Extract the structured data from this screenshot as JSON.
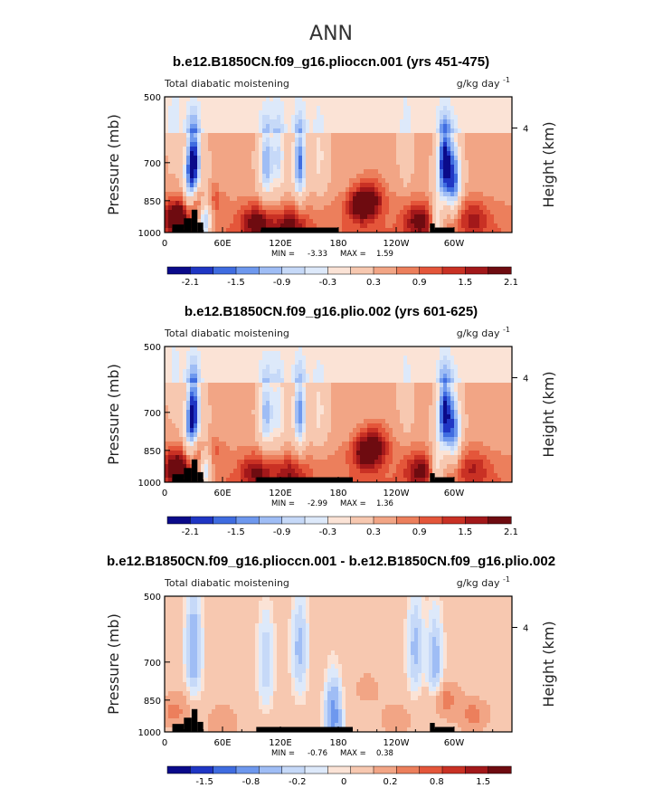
{
  "main_title": "ANN",
  "chart_data": [
    {
      "type": "heatmap",
      "title": "b.e12.B1850CN.f09_g16.plioccn.001 (yrs 451-475)",
      "left_label": "Total diabatic moistening",
      "units": "g/kg day",
      "units_exp": "-1",
      "ylabel": "Pressure (mb)",
      "y2label": "Height (km)",
      "yticks": [
        "500",
        "700",
        "850",
        "1000"
      ],
      "y2ticks": [
        "4"
      ],
      "xticks": [
        "0",
        "60E",
        "120E",
        "180",
        "120W",
        "60W"
      ],
      "min_label": "MIN =",
      "min": "-3.33",
      "max_label": "MAX =",
      "max": "1.59",
      "colorbar_levels": [
        "-2.1",
        "-1.5",
        "-0.9",
        "-0.3",
        "0.3",
        "0.9",
        "1.5",
        "2.1"
      ],
      "colors": [
        "#0a0a8a",
        "#1f36c4",
        "#3f6ce0",
        "#6e98ee",
        "#9fbdf5",
        "#c6d9f8",
        "#dde9fa",
        "#fbe3d6",
        "#f7c8b0",
        "#f2a585",
        "#ec7f5c",
        "#e4563a",
        "#c93124",
        "#a2181a",
        "#6e0b10"
      ],
      "blobs": [
        {
          "x": 30,
          "y": 700,
          "v": -2.9
        },
        {
          "x": 25,
          "y": 820,
          "v": -1.3
        },
        {
          "x": 42,
          "y": 920,
          "v": -2.4
        },
        {
          "x": 15,
          "y": 930,
          "v": 2.0
        },
        {
          "x": 38,
          "y": 840,
          "v": 1.4
        },
        {
          "x": 105,
          "y": 700,
          "v": -1.8
        },
        {
          "x": 118,
          "y": 680,
          "v": -1.3
        },
        {
          "x": 140,
          "y": 700,
          "v": -2.2
        },
        {
          "x": 160,
          "y": 680,
          "v": -0.8
        },
        {
          "x": 95,
          "y": 950,
          "v": 1.4
        },
        {
          "x": 130,
          "y": 960,
          "v": 1.2
        },
        {
          "x": 205,
          "y": 870,
          "v": 1.6
        },
        {
          "x": 215,
          "y": 820,
          "v": 0.8
        },
        {
          "x": 290,
          "y": 700,
          "v": -2.9
        },
        {
          "x": 300,
          "y": 760,
          "v": -2.2
        },
        {
          "x": 282,
          "y": 960,
          "v": -1.5
        },
        {
          "x": 265,
          "y": 940,
          "v": 1.4
        },
        {
          "x": 320,
          "y": 930,
          "v": 0.9
        },
        {
          "x": 250,
          "y": 600,
          "v": -0.4
        },
        {
          "x": 10,
          "y": 560,
          "v": -0.4
        }
      ],
      "topography": [
        {
          "x0": 8,
          "x1": 20,
          "p": 960
        },
        {
          "x0": 20,
          "x1": 28,
          "p": 930
        },
        {
          "x0": 28,
          "x1": 34,
          "p": 890
        },
        {
          "x0": 34,
          "x1": 40,
          "p": 950
        },
        {
          "x0": 100,
          "x1": 180,
          "p": 975
        },
        {
          "x0": 275,
          "x1": 280,
          "p": 955
        },
        {
          "x0": 280,
          "x1": 300,
          "p": 975
        }
      ]
    },
    {
      "type": "heatmap",
      "title": "b.e12.B1850CN.f09_g16.plio.002 (yrs 601-625)",
      "left_label": "Total diabatic moistening",
      "units": "g/kg day",
      "units_exp": "-1",
      "ylabel": "Pressure (mb)",
      "y2label": "Height (km)",
      "yticks": [
        "500",
        "700",
        "850",
        "1000"
      ],
      "y2ticks": [
        "4"
      ],
      "xticks": [
        "0",
        "60E",
        "120E",
        "180",
        "120W",
        "60W"
      ],
      "min_label": "MIN =",
      "min": "-2.99",
      "max_label": "MAX =",
      "max": "1.36",
      "colorbar_levels": [
        "-2.1",
        "-1.5",
        "-0.9",
        "-0.3",
        "0.3",
        "0.9",
        "1.5",
        "2.1"
      ],
      "colors": [
        "#0a0a8a",
        "#1f36c4",
        "#3f6ce0",
        "#6e98ee",
        "#9fbdf5",
        "#c6d9f8",
        "#dde9fa",
        "#fbe3d6",
        "#f7c8b0",
        "#f2a585",
        "#ec7f5c",
        "#e4563a",
        "#c93124",
        "#a2181a",
        "#6e0b10"
      ],
      "blobs": [
        {
          "x": 30,
          "y": 700,
          "v": -2.7
        },
        {
          "x": 25,
          "y": 820,
          "v": -1.2
        },
        {
          "x": 42,
          "y": 920,
          "v": -2.0
        },
        {
          "x": 15,
          "y": 930,
          "v": 1.8
        },
        {
          "x": 38,
          "y": 840,
          "v": 1.2
        },
        {
          "x": 105,
          "y": 700,
          "v": -1.7
        },
        {
          "x": 118,
          "y": 690,
          "v": -1.2
        },
        {
          "x": 140,
          "y": 700,
          "v": -2.0
        },
        {
          "x": 160,
          "y": 690,
          "v": -0.8
        },
        {
          "x": 95,
          "y": 950,
          "v": 1.2
        },
        {
          "x": 130,
          "y": 960,
          "v": 1.0
        },
        {
          "x": 210,
          "y": 860,
          "v": 1.6
        },
        {
          "x": 220,
          "y": 810,
          "v": 0.8
        },
        {
          "x": 290,
          "y": 700,
          "v": -2.7
        },
        {
          "x": 300,
          "y": 760,
          "v": -2.0
        },
        {
          "x": 282,
          "y": 960,
          "v": -1.4
        },
        {
          "x": 265,
          "y": 940,
          "v": 1.2
        },
        {
          "x": 320,
          "y": 930,
          "v": 0.8
        },
        {
          "x": 250,
          "y": 600,
          "v": -0.35
        },
        {
          "x": 10,
          "y": 560,
          "v": -0.35
        }
      ],
      "topography": [
        {
          "x0": 8,
          "x1": 20,
          "p": 960
        },
        {
          "x0": 20,
          "x1": 28,
          "p": 930
        },
        {
          "x0": 28,
          "x1": 34,
          "p": 890
        },
        {
          "x0": 34,
          "x1": 40,
          "p": 950
        },
        {
          "x0": 95,
          "x1": 195,
          "p": 975
        },
        {
          "x0": 275,
          "x1": 280,
          "p": 955
        },
        {
          "x0": 280,
          "x1": 300,
          "p": 975
        }
      ]
    },
    {
      "type": "heatmap",
      "title": "b.e12.B1850CN.f09_g16.plioccn.001 - b.e12.B1850CN.f09_g16.plio.002",
      "left_label": "Total diabatic moistening",
      "units": "g/kg day",
      "units_exp": "-1",
      "ylabel": "Pressure (mb)",
      "y2label": "Height (km)",
      "yticks": [
        "500",
        "700",
        "850",
        "1000"
      ],
      "y2ticks": [
        "4"
      ],
      "xticks": [
        "0",
        "60E",
        "120E",
        "180",
        "120W",
        "60W"
      ],
      "min_label": "MIN =",
      "min": "-0.76",
      "max_label": "MAX =",
      "max": "0.38",
      "colorbar_levels": [
        "-1.5",
        "-0.8",
        "-0.2",
        "0",
        "0.2",
        "0.8",
        "1.5"
      ],
      "colors": [
        "#0a0a8a",
        "#1f36c4",
        "#3f6ce0",
        "#6e98ee",
        "#9fbdf5",
        "#c6d9f8",
        "#dde9fa",
        "#fbe3d6",
        "#f7c8b0",
        "#f2a585",
        "#ec7f5c",
        "#e4563a",
        "#c93124",
        "#a2181a",
        "#6e0b10"
      ],
      "blobs": [
        {
          "x": 30,
          "y": 650,
          "v": -0.45
        },
        {
          "x": 10,
          "y": 900,
          "v": 0.2
        },
        {
          "x": 60,
          "y": 950,
          "v": 0.15
        },
        {
          "x": 105,
          "y": 700,
          "v": -0.25
        },
        {
          "x": 140,
          "y": 650,
          "v": -0.3
        },
        {
          "x": 175,
          "y": 930,
          "v": -0.7
        },
        {
          "x": 210,
          "y": 800,
          "v": 0.1
        },
        {
          "x": 260,
          "y": 650,
          "v": -0.3
        },
        {
          "x": 280,
          "y": 700,
          "v": -0.35
        },
        {
          "x": 290,
          "y": 850,
          "v": 0.2
        },
        {
          "x": 320,
          "y": 920,
          "v": 0.2
        },
        {
          "x": 240,
          "y": 940,
          "v": 0.15
        }
      ],
      "topography": [
        {
          "x0": 8,
          "x1": 20,
          "p": 960
        },
        {
          "x0": 20,
          "x1": 28,
          "p": 930
        },
        {
          "x0": 28,
          "x1": 34,
          "p": 890
        },
        {
          "x0": 34,
          "x1": 40,
          "p": 950
        },
        {
          "x0": 95,
          "x1": 195,
          "p": 975
        },
        {
          "x0": 275,
          "x1": 280,
          "p": 955
        },
        {
          "x0": 280,
          "x1": 300,
          "p": 975
        }
      ]
    }
  ]
}
